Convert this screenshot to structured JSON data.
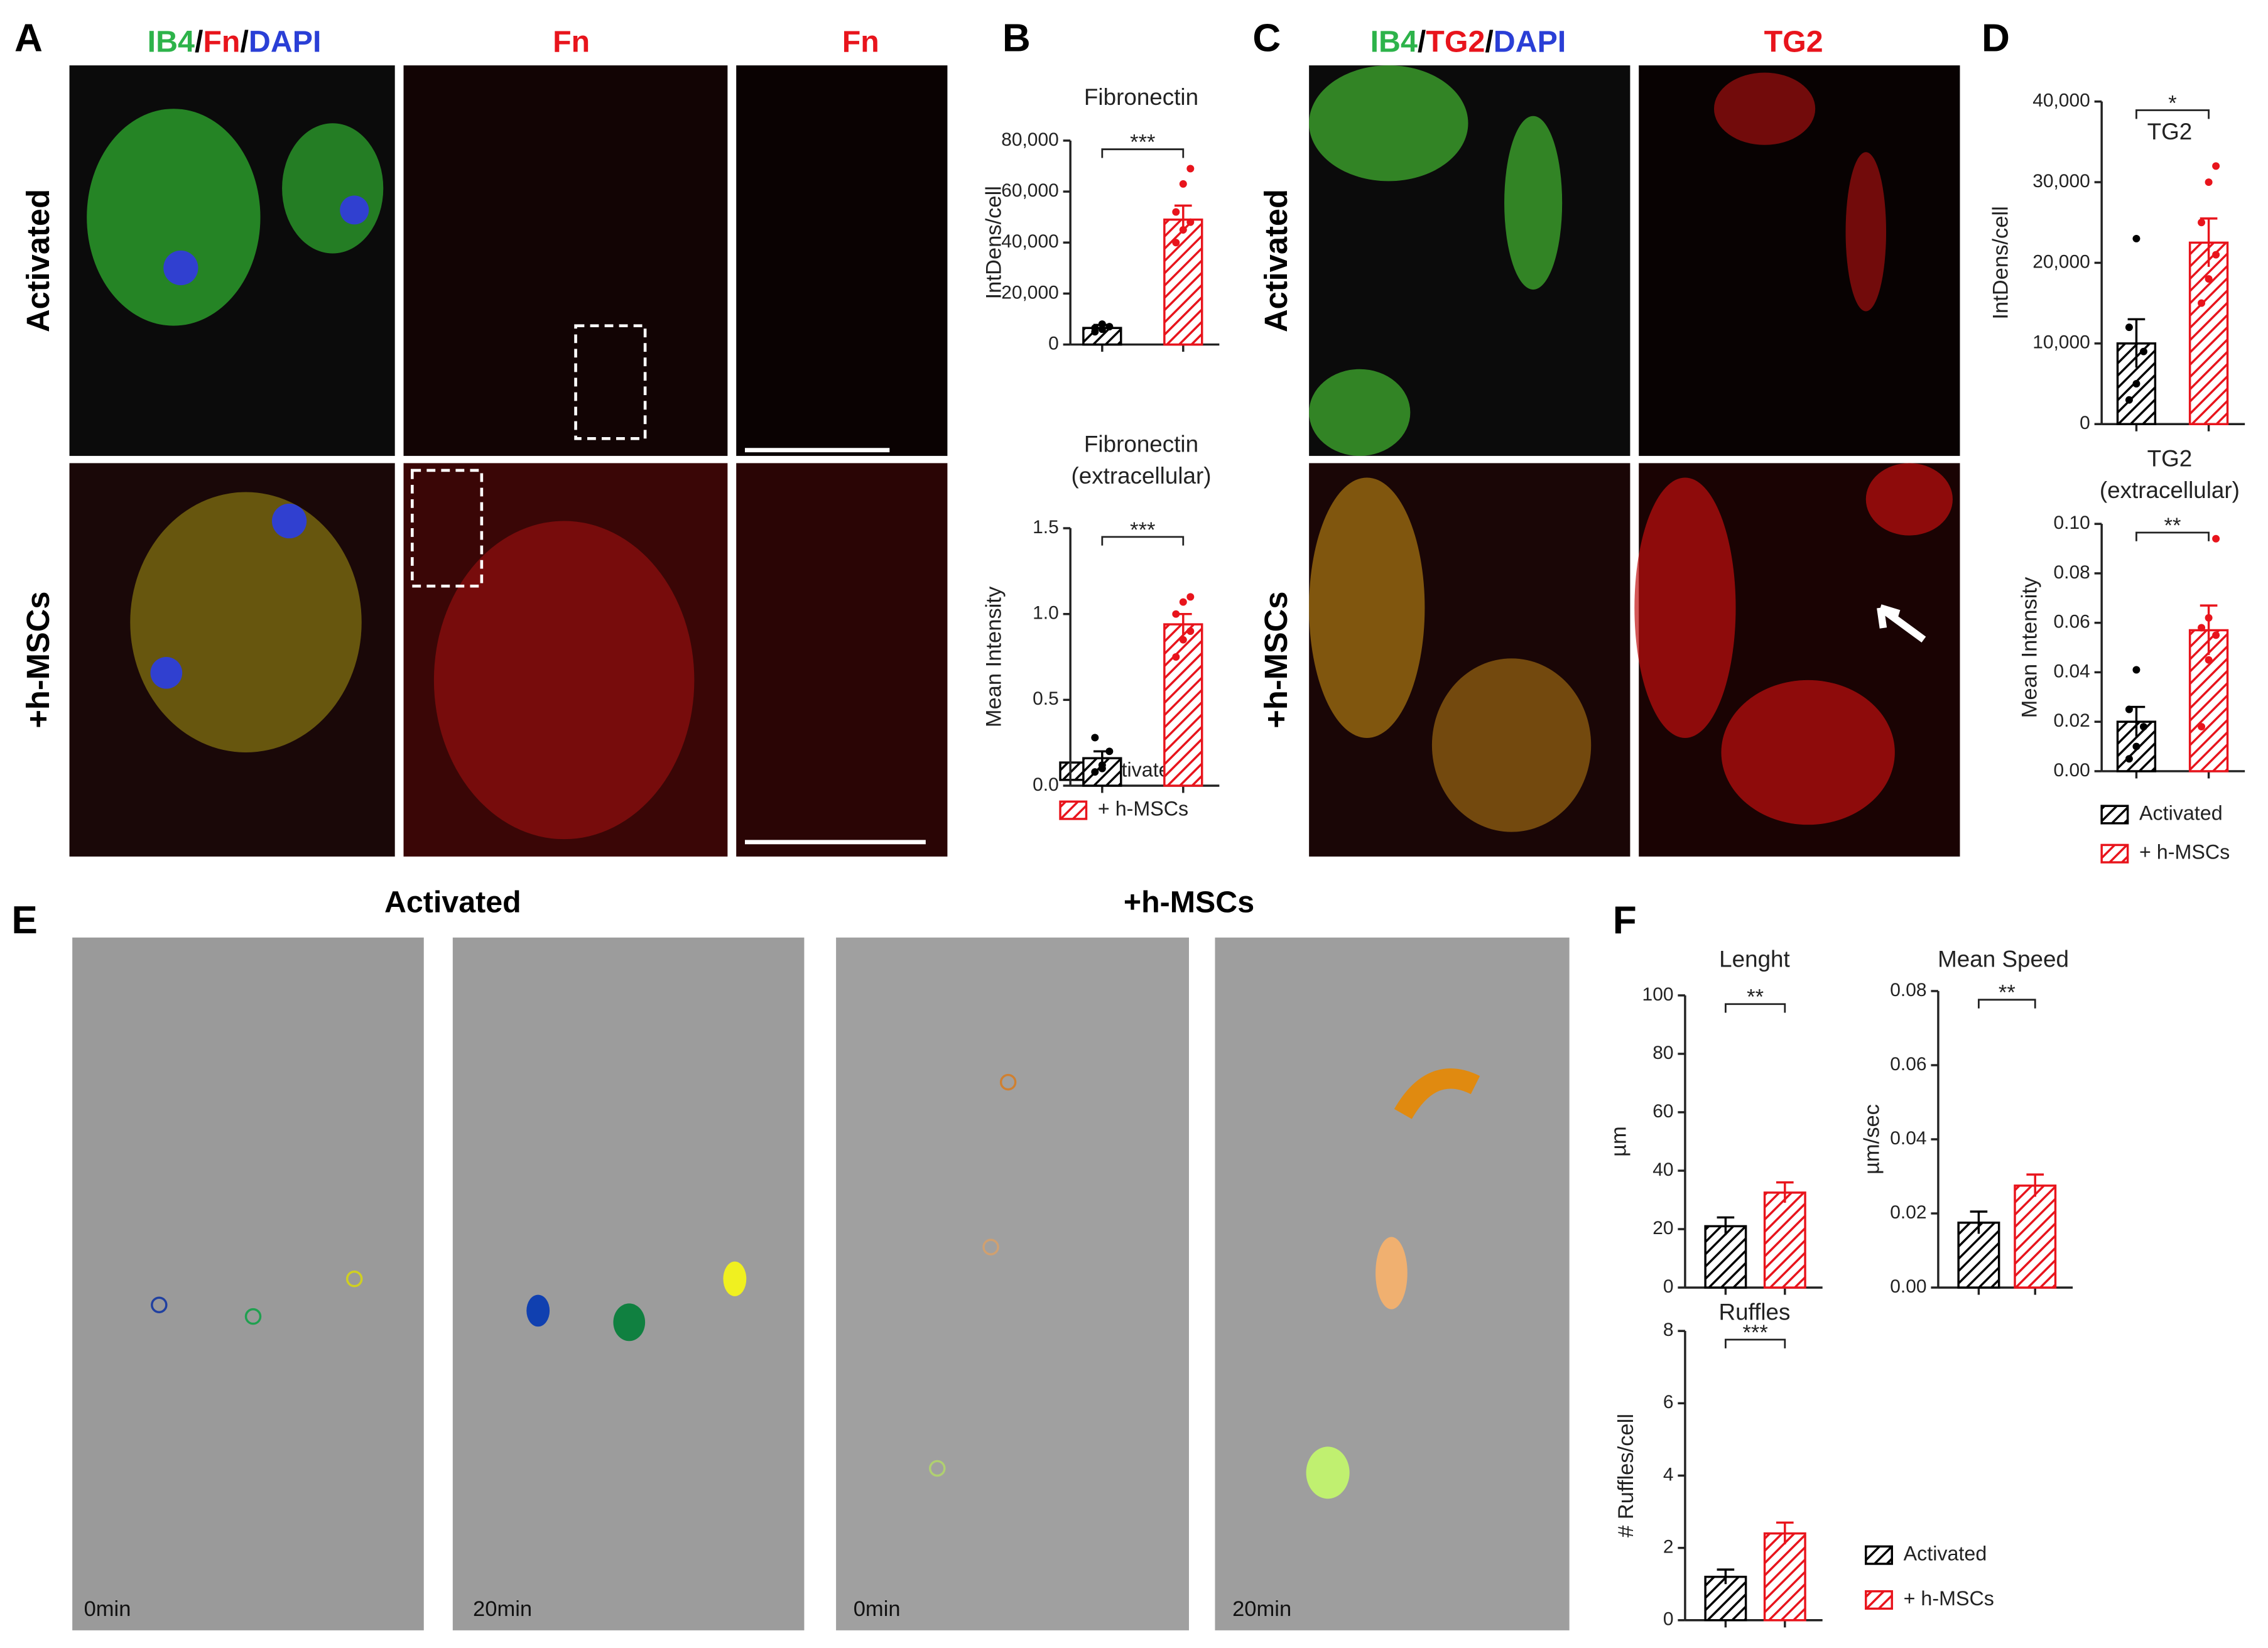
{
  "figure": {
    "panel_a": {
      "letter": "A",
      "header": [
        {
          "text": "IB4",
          "color": "#2db34a"
        },
        {
          "text": "/",
          "color": "#000000"
        },
        {
          "text": "Fn",
          "color": "#e8141c"
        },
        {
          "text": "/",
          "color": "#000000"
        },
        {
          "text": "DAPI",
          "color": "#2a3fd6"
        }
      ],
      "col2": "Fn",
      "col3": "Fn",
      "rows": [
        "Activated",
        "+h-MSCs"
      ]
    },
    "panel_b": {
      "letter": "B"
    },
    "panel_c": {
      "letter": "C",
      "header": [
        {
          "text": "IB4",
          "color": "#2db34a"
        },
        {
          "text": "/",
          "color": "#000000"
        },
        {
          "text": "TG2",
          "color": "#e8141c"
        },
        {
          "text": "/",
          "color": "#000000"
        },
        {
          "text": "DAPI",
          "color": "#2a3fd6"
        }
      ],
      "col2": "TG2",
      "rows": [
        "Activated",
        "+h-MSCs"
      ]
    },
    "panel_d": {
      "letter": "D"
    },
    "panel_e": {
      "letter": "E",
      "groups": [
        "Activated",
        "+h-MSCs"
      ],
      "times": [
        "0min",
        "20min",
        "0min",
        "20min"
      ]
    },
    "panel_f": {
      "letter": "F"
    }
  },
  "legend": {
    "names": [
      "Activated",
      "+ h-MSCs"
    ],
    "colors": [
      "#000000",
      "#e8141c"
    ]
  },
  "chart_data": [
    {
      "type": "bar",
      "title": [
        "Fibronectin"
      ],
      "y_label": "IntDens/cell",
      "categories": [
        null,
        null
      ],
      "values": [
        6500,
        49000
      ],
      "errors": [
        1200,
        5500
      ],
      "points": [
        [
          5000,
          6000,
          7000,
          6500,
          8000
        ],
        [
          40000,
          45000,
          48000,
          52000,
          63000,
          69000
        ]
      ],
      "annotation": "***",
      "ylim": [
        0,
        80000
      ],
      "yticks": [
        0,
        {
          "value": 20000,
          "label": "20,000"
        },
        {
          "value": 40000,
          "label": "40,000"
        },
        {
          "value": 60000,
          "label": "60,000"
        },
        {
          "value": 80000,
          "label": "80,000"
        }
      ]
    },
    {
      "type": "bar",
      "title": [
        "Fibronectin",
        "(extracellular)"
      ],
      "y_label": "Mean Intensity",
      "categories": [
        null,
        null
      ],
      "values": [
        0.16,
        0.94
      ],
      "errors": [
        0.04,
        0.06
      ],
      "points": [
        [
          0.08,
          0.12,
          0.2,
          0.28,
          0.1
        ],
        [
          0.75,
          0.85,
          0.9,
          1.0,
          1.07,
          1.1
        ]
      ],
      "annotation": "***",
      "ylim": [
        0,
        1.5
      ],
      "yticks": [
        {
          "value": 0,
          "label": "0.0"
        },
        0.5,
        {
          "value": 1,
          "label": "1.0"
        },
        1.5
      ]
    },
    {
      "type": "bar",
      "title": [
        "TG2"
      ],
      "y_label": "IntDens/cell",
      "categories": [
        null,
        null
      ],
      "values": [
        10000,
        22500
      ],
      "errors": [
        3000,
        3000
      ],
      "points": [
        [
          3000,
          5000,
          9000,
          12000,
          23000
        ],
        [
          15000,
          18000,
          21000,
          25000,
          30000,
          32000
        ]
      ],
      "annotation": "*",
      "ylim": [
        0,
        40000
      ],
      "yticks": [
        0,
        {
          "value": 10000,
          "label": "10,000"
        },
        {
          "value": 20000,
          "label": "20,000"
        },
        {
          "value": 30000,
          "label": "30,000"
        },
        {
          "value": 40000,
          "label": "40,000"
        }
      ]
    },
    {
      "type": "bar",
      "title": [
        "TG2",
        "(extracellular)"
      ],
      "y_label": "Mean  Intensity",
      "categories": [
        null,
        null
      ],
      "values": [
        0.02,
        0.057
      ],
      "errors": [
        0.006,
        0.01
      ],
      "points": [
        [
          0.005,
          0.01,
          0.018,
          0.025,
          0.041
        ],
        [
          0.018,
          0.045,
          0.055,
          0.058,
          0.062,
          0.094
        ]
      ],
      "annotation": "**",
      "ylim": [
        0,
        0.1
      ],
      "yticks": [
        {
          "value": 0,
          "label": "0.00"
        },
        0.02,
        0.04,
        0.06,
        0.08,
        {
          "value": 0.1,
          "label": "0.10"
        }
      ]
    },
    {
      "type": "bar",
      "title": [
        "Lenght"
      ],
      "y_label": "µm",
      "categories": [
        null,
        null
      ],
      "values": [
        21,
        32.5
      ],
      "errors": [
        3,
        3.5
      ],
      "annotation": "**",
      "ylim": [
        0,
        100
      ],
      "yticks": [
        0,
        20,
        40,
        60,
        80,
        100
      ]
    },
    {
      "type": "bar",
      "title": [
        "Mean Speed"
      ],
      "y_label": "µm/sec",
      "categories": [
        null,
        null
      ],
      "values": [
        0.0175,
        0.0275
      ],
      "errors": [
        0.003,
        0.003
      ],
      "annotation": "**",
      "ylim": [
        0,
        0.08
      ],
      "yticks": [
        {
          "value": 0,
          "label": "0.00"
        },
        0.02,
        0.04,
        0.06,
        {
          "value": 0.08,
          "label": "0.08"
        }
      ]
    },
    {
      "type": "bar",
      "title": [
        "Ruffles"
      ],
      "y_label": "# Ruffles/cell",
      "categories": [
        null,
        null
      ],
      "values": [
        1.2,
        2.4
      ],
      "errors": [
        0.2,
        0.3
      ],
      "annotation": "***",
      "ylim": [
        0,
        8
      ],
      "yticks": [
        0,
        2,
        4,
        6,
        8
      ]
    }
  ]
}
